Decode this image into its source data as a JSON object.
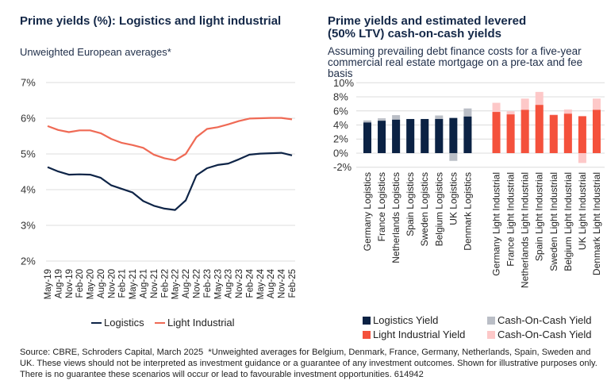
{
  "chart_data": [
    {
      "type": "line",
      "title": "Prime yields (%): Logistics and light industrial",
      "subtitle": "Unweighted European averages*",
      "xlabel": "",
      "ylabel": "",
      "x": [
        "May-19",
        "Aug-19",
        "Nov-19",
        "Feb-20",
        "May-20",
        "Aug-20",
        "Nov-20",
        "Feb-21",
        "May-21",
        "Aug-21",
        "Nov-21",
        "Feb-22",
        "May-22",
        "Aug-22",
        "Nov-22",
        "Feb-23",
        "May-23",
        "Aug-23",
        "Nov-23",
        "Feb-24",
        "May-24",
        "Aug-24",
        "Nov-24",
        "Feb-25"
      ],
      "ylim": [
        2,
        7
      ],
      "yticks": [
        {
          "value": 7,
          "label": "7%"
        },
        {
          "value": 6,
          "label": "6%"
        },
        {
          "value": 5,
          "label": "5%"
        },
        {
          "value": 4,
          "label": "4%"
        },
        {
          "value": 3,
          "label": "3%"
        },
        {
          "value": 2,
          "label": "2%"
        }
      ],
      "grid": true,
      "legend": "bottom",
      "series": [
        {
          "name": "Logistics",
          "color": "#0e2447",
          "values": [
            4.63,
            4.51,
            4.42,
            4.43,
            4.42,
            4.33,
            4.12,
            4.02,
            3.92,
            3.68,
            3.55,
            3.47,
            3.43,
            3.7,
            4.4,
            4.6,
            4.69,
            4.73,
            4.85,
            4.98,
            5.01,
            5.02,
            5.03,
            4.96
          ]
        },
        {
          "name": "Light Industrial",
          "color": "#ef6a55",
          "values": [
            5.78,
            5.67,
            5.61,
            5.66,
            5.66,
            5.58,
            5.42,
            5.31,
            5.25,
            5.17,
            4.98,
            4.88,
            4.82,
            5.0,
            5.47,
            5.7,
            5.75,
            5.83,
            5.92,
            5.99,
            6.0,
            6.01,
            6.01,
            5.97
          ]
        }
      ]
    },
    {
      "type": "bar",
      "title": "Prime yields and estimated levered (50% LTV) cash-on-cash yields",
      "subtitle": "Assuming prevailing debt finance costs for a five-year commercial real estate mortgage on a pre-tax and fee basis",
      "xlabel": "",
      "ylabel": "",
      "ylim": [
        -2,
        10
      ],
      "yticks": [
        {
          "value": 10,
          "label": "10%"
        },
        {
          "value": 8,
          "label": "8%"
        },
        {
          "value": 6,
          "label": "6%"
        },
        {
          "value": 4,
          "label": "4%"
        },
        {
          "value": 2,
          "label": "2%"
        },
        {
          "value": 0,
          "label": "0%"
        },
        {
          "value": -2,
          "label": "-2%"
        }
      ],
      "grid": true,
      "legend": "bottom",
      "groups": [
        {
          "name": "Logistics",
          "categories": [
            "Germany Logistics",
            "France Logistics",
            "Netherlands Logistics",
            "Spain Logistics",
            "Sweden Logistics",
            "Belgium Logistics",
            "UK Logistics",
            "Denmark Logistics"
          ],
          "series": [
            {
              "name": "Logistics Yield",
              "color": "#0b2244",
              "values": [
                4.35,
                4.6,
                4.75,
                4.85,
                4.85,
                4.85,
                5.0,
                5.2
              ]
            },
            {
              "name": "Cash-On-Cash Yield",
              "color": "#babec6",
              "values": [
                4.65,
                4.95,
                5.4,
                4.8,
                4.8,
                5.35,
                -1.1,
                6.35
              ]
            }
          ]
        },
        {
          "name": "Light Industrial",
          "categories": [
            "Germany Light Industrial",
            "France Light Industrial",
            "Netherlands Light Industrial",
            "Spain Light Industrial",
            "Sweden Light Industrial",
            "Belgium Light Industrial",
            "UK Light Industrial",
            "Denmark Light Industrial"
          ],
          "series": [
            {
              "name": "Light Industrial Yield",
              "color": "#f4513c",
              "values": [
                5.85,
                5.5,
                6.15,
                6.85,
                5.4,
                5.6,
                5.25,
                6.15
              ]
            },
            {
              "name": "Cash-On-Cash Yield",
              "color": "#fdc8c8",
              "values": [
                7.15,
                5.95,
                7.75,
                8.7,
                5.5,
                6.2,
                -1.4,
                7.75
              ]
            }
          ]
        }
      ]
    }
  ],
  "footer": "Source: CBRE, Schroders Capital, March 2025  *Unweighted averages for Belgium, Denmark, France, Germany, Netherlands, Spain, Sweden and UK. These views should not be interpreted as investment guidance or a guarantee of any investment outcomes. Shown for illustrative purposes only. There is no guarantee these scenarios will occur or lead to favourable investment opportunities. 614942"
}
